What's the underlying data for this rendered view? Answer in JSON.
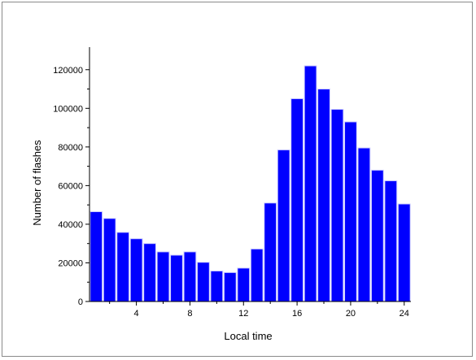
{
  "chart_data": {
    "type": "bar",
    "title": "",
    "xlabel": "Local time",
    "ylabel": "Number of flashes",
    "x": [
      1,
      2,
      3,
      4,
      5,
      6,
      7,
      8,
      9,
      10,
      11,
      12,
      13,
      14,
      15,
      16,
      17,
      18,
      19,
      20,
      21,
      22,
      23,
      24
    ],
    "values": [
      46500,
      43000,
      35800,
      32500,
      30000,
      25700,
      24000,
      25700,
      20300,
      15800,
      15000,
      17300,
      27200,
      51000,
      78500,
      105000,
      122000,
      110000,
      99500,
      93000,
      79500,
      68000,
      62500,
      50500
    ],
    "xlim": [
      0.5,
      24.5
    ],
    "ylim": [
      0,
      130000
    ],
    "xticks": [
      4,
      8,
      12,
      16,
      20,
      24
    ],
    "xtick_labels": [
      "4",
      "8",
      "12",
      "16",
      "20",
      "24"
    ],
    "yticks": [
      0,
      20000,
      40000,
      60000,
      80000,
      100000,
      120000
    ],
    "ytick_labels": [
      "0",
      "20000",
      "40000",
      "60000",
      "80000",
      "100000",
      "120000"
    ],
    "grid": false,
    "colors": {
      "bar_fill": "#0000ff",
      "bar_edge": "#cfcfff",
      "axis": "#000000",
      "frame": "#8a8a8a"
    }
  }
}
